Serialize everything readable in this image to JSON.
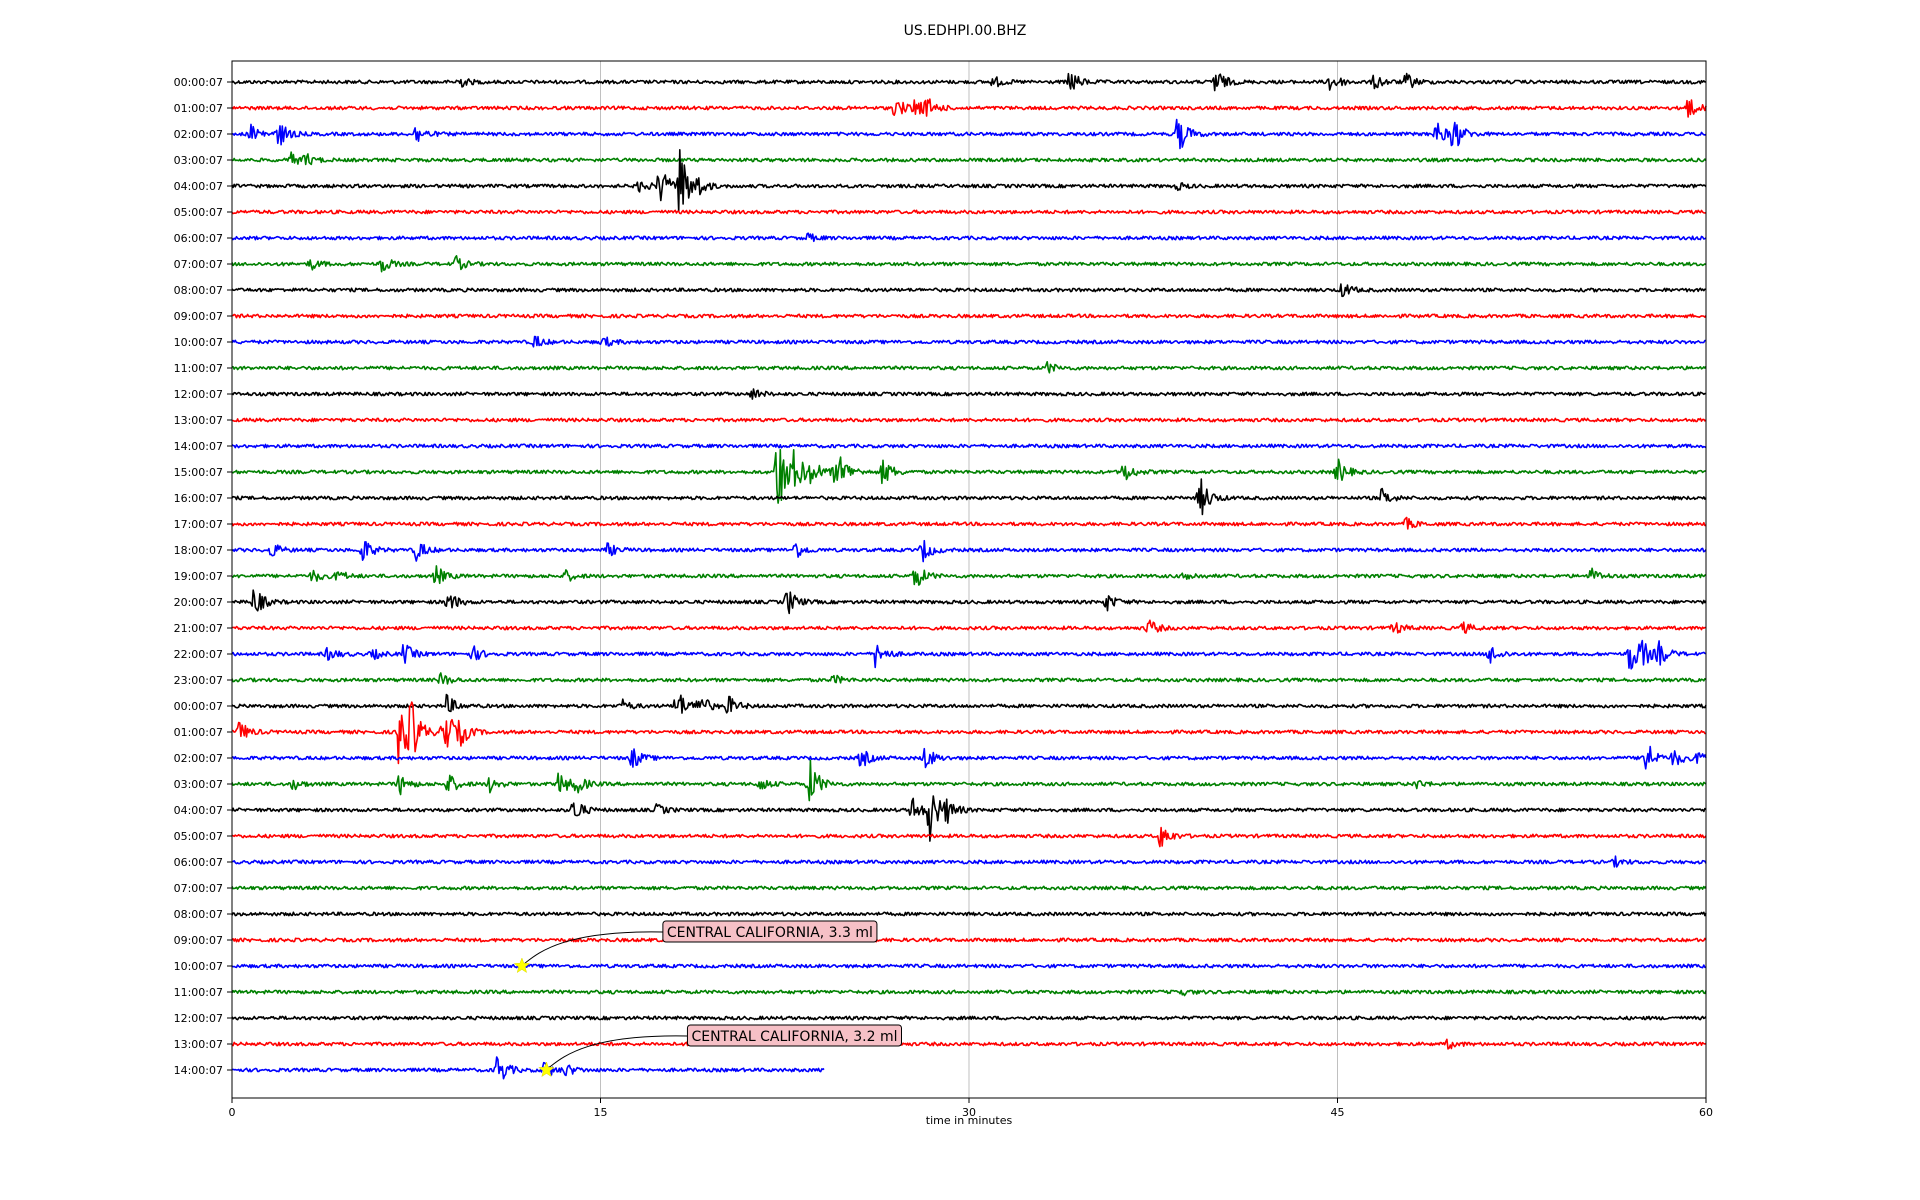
{
  "chart_data": {
    "type": "line",
    "title": "US.EDHPI.00.BHZ",
    "xlabel": "time in minutes",
    "ylabel": "",
    "xlim": [
      0,
      60
    ],
    "grid": "vertical",
    "xticks": [
      0,
      15,
      30,
      45,
      60
    ],
    "colors": [
      "#000000",
      "#ff0000",
      "#0000ff",
      "#008000"
    ],
    "rows": [
      {
        "label": "00:00:07",
        "end": 60,
        "events": [
          [
            9.2,
            0.6
          ],
          [
            31,
            0.5
          ],
          [
            34.1,
            1.1
          ],
          [
            40,
            1.4
          ],
          [
            44.7,
            1.0
          ],
          [
            46.5,
            0.7
          ],
          [
            47.8,
            0.8
          ]
        ]
      },
      {
        "label": "01:00:07",
        "end": 60,
        "events": [
          [
            27.0,
            1.0
          ],
          [
            27.8,
            0.9
          ],
          [
            28.3,
            0.8
          ],
          [
            59.2,
            1.2
          ]
        ]
      },
      {
        "label": "02:00:07",
        "end": 60,
        "events": [
          [
            0.8,
            1.0
          ],
          [
            1.9,
            1.2
          ],
          [
            7.5,
            0.9
          ],
          [
            38.5,
            1.9
          ],
          [
            49.0,
            1.2
          ],
          [
            49.7,
            1.7
          ]
        ]
      },
      {
        "label": "03:00:07",
        "end": 60,
        "events": [
          [
            2.4,
            0.6
          ],
          [
            3.0,
            0.5
          ]
        ]
      },
      {
        "label": "04:00:07",
        "end": 60,
        "events": [
          [
            16.6,
            0.6
          ],
          [
            17.4,
            1.8
          ],
          [
            18.2,
            3.8
          ],
          [
            18.9,
            0.8
          ],
          [
            38.5,
            0.3
          ]
        ]
      },
      {
        "label": "05:00:07",
        "end": 60,
        "events": []
      },
      {
        "label": "06:00:07",
        "end": 60,
        "events": [
          [
            23.4,
            0.4
          ]
        ]
      },
      {
        "label": "07:00:07",
        "end": 60,
        "events": [
          [
            3.2,
            0.5
          ],
          [
            6.1,
            0.8
          ],
          [
            9.1,
            0.7
          ]
        ]
      },
      {
        "label": "08:00:07",
        "end": 60,
        "events": [
          [
            45.2,
            0.7
          ]
        ]
      },
      {
        "label": "09:00:07",
        "end": 60,
        "events": []
      },
      {
        "label": "10:00:07",
        "end": 60,
        "events": [
          [
            12.3,
            0.6
          ],
          [
            15.1,
            0.5
          ]
        ]
      },
      {
        "label": "11:00:07",
        "end": 60,
        "events": [
          [
            33.2,
            0.5
          ]
        ]
      },
      {
        "label": "12:00:07",
        "end": 60,
        "events": [
          [
            21.2,
            0.5
          ]
        ]
      },
      {
        "label": "13:00:07",
        "end": 60,
        "events": []
      },
      {
        "label": "14:00:07",
        "end": 60,
        "events": []
      },
      {
        "label": "15:00:07",
        "end": 60,
        "events": [
          [
            22.2,
            4.5
          ],
          [
            22.9,
            1.8
          ],
          [
            23.6,
            1.1
          ],
          [
            24.5,
            0.9
          ],
          [
            24.8,
            1.2
          ],
          [
            26.5,
            1.3
          ],
          [
            36.3,
            1.0
          ],
          [
            45.0,
            1.2
          ]
        ]
      },
      {
        "label": "16:00:07",
        "end": 60,
        "events": [
          [
            39.4,
            2.0
          ],
          [
            46.8,
            0.8
          ]
        ]
      },
      {
        "label": "17:00:07",
        "end": 60,
        "events": [
          [
            47.8,
            0.5
          ]
        ]
      },
      {
        "label": "18:00:07",
        "end": 60,
        "events": [
          [
            1.6,
            0.7
          ],
          [
            5.3,
            1.2
          ],
          [
            7.5,
            1.0
          ],
          [
            15.3,
            0.6
          ],
          [
            22.9,
            0.9
          ],
          [
            28.1,
            1.1
          ]
        ]
      },
      {
        "label": "19:00:07",
        "end": 60,
        "events": [
          [
            3.3,
            0.6
          ],
          [
            4.3,
            0.5
          ],
          [
            8.3,
            0.9
          ],
          [
            13.6,
            0.5
          ],
          [
            27.8,
            1.3
          ],
          [
            38.8,
            0.5
          ],
          [
            55.3,
            0.7
          ]
        ]
      },
      {
        "label": "20:00:07",
        "end": 60,
        "events": [
          [
            0.9,
            1.4
          ],
          [
            8.8,
            1.0
          ],
          [
            22.6,
            1.3
          ],
          [
            35.6,
            0.8
          ]
        ]
      },
      {
        "label": "21:00:07",
        "end": 60,
        "events": [
          [
            37.3,
            0.8
          ],
          [
            47.3,
            0.6
          ],
          [
            50.1,
            0.5
          ]
        ]
      },
      {
        "label": "22:00:07",
        "end": 60,
        "events": [
          [
            3.9,
            0.6
          ],
          [
            5.7,
            0.5
          ],
          [
            7.0,
            1.0
          ],
          [
            9.8,
            0.7
          ],
          [
            26.2,
            1.3
          ],
          [
            51.2,
            0.9
          ],
          [
            56.9,
            2.0
          ],
          [
            57.4,
            1.0
          ],
          [
            58.1,
            1.0
          ]
        ]
      },
      {
        "label": "23:00:07",
        "end": 60,
        "events": [
          [
            8.5,
            0.6
          ],
          [
            24.5,
            0.4
          ]
        ]
      },
      {
        "label": "00:00:07",
        "end": 60,
        "events": [
          [
            8.7,
            1.1
          ],
          [
            18.1,
            1.6
          ],
          [
            19.0,
            1.2
          ],
          [
            20.2,
            0.9
          ],
          [
            15.9,
            0.5
          ]
        ]
      },
      {
        "label": "01:00:07",
        "end": 60,
        "events": [
          [
            0.3,
            1.0
          ],
          [
            6.8,
            4.0
          ],
          [
            7.3,
            2.4
          ],
          [
            8.6,
            3.0
          ],
          [
            9.3,
            1.0
          ]
        ]
      },
      {
        "label": "02:00:07",
        "end": 60,
        "events": [
          [
            16.3,
            1.0
          ],
          [
            25.6,
            0.9
          ],
          [
            28.2,
            1.1
          ],
          [
            57.5,
            2.0
          ],
          [
            58.7,
            0.8
          ],
          [
            59.7,
            0.7
          ]
        ]
      },
      {
        "label": "03:00:07",
        "end": 60,
        "events": [
          [
            2.5,
            0.5
          ],
          [
            6.8,
            1.0
          ],
          [
            8.8,
            1.0
          ],
          [
            10.5,
            0.7
          ],
          [
            13.3,
            1.2
          ],
          [
            14.0,
            0.9
          ],
          [
            21.5,
            0.6
          ],
          [
            23.5,
            2.4
          ],
          [
            48.2,
            0.4
          ]
        ]
      },
      {
        "label": "04:00:07",
        "end": 60,
        "events": [
          [
            13.9,
            1.2
          ],
          [
            27.7,
            1.2
          ],
          [
            28.4,
            2.8
          ],
          [
            29.1,
            0.9
          ],
          [
            17.3,
            0.5
          ]
        ]
      },
      {
        "label": "05:00:07",
        "end": 60,
        "events": [
          [
            37.8,
            1.2
          ]
        ]
      },
      {
        "label": "06:00:07",
        "end": 60,
        "events": [
          [
            56.3,
            0.4
          ]
        ]
      },
      {
        "label": "07:00:07",
        "end": 60,
        "events": []
      },
      {
        "label": "08:00:07",
        "end": 60,
        "events": []
      },
      {
        "label": "09:00:07",
        "end": 60,
        "events": []
      },
      {
        "label": "10:00:07",
        "end": 60,
        "events": []
      },
      {
        "label": "11:00:07",
        "end": 60,
        "events": [
          [
            38.5,
            0.4
          ]
        ]
      },
      {
        "label": "12:00:07",
        "end": 60,
        "events": []
      },
      {
        "label": "13:00:07",
        "end": 60,
        "events": [
          [
            49.5,
            0.4
          ]
        ]
      },
      {
        "label": "14:00:07",
        "end": 24.1,
        "events": [
          [
            10.8,
            1.6
          ],
          [
            12.7,
            0.8
          ],
          [
            13.6,
            0.5
          ]
        ]
      }
    ],
    "annotations": [
      {
        "text": "CENTRAL CALIFORNIA, 3.3 ml",
        "row": 34,
        "x": 11.8,
        "marker": "star",
        "marker_color": "#ffff00",
        "box_color": "#f6c0c6"
      },
      {
        "text": "CENTRAL CALIFORNIA, 3.2 ml",
        "row": 38,
        "x": 12.8,
        "marker": "star",
        "marker_color": "#ffff00",
        "box_color": "#f6c0c6"
      }
    ]
  }
}
